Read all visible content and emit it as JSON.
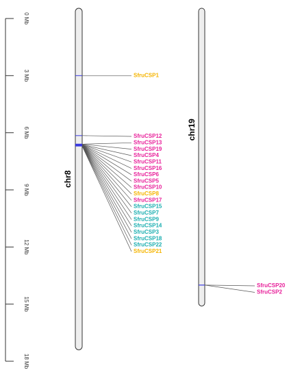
{
  "scale": {
    "ylim": [
      0,
      18
    ],
    "ticks": [
      {
        "value": 0,
        "label": "0 Mb"
      },
      {
        "value": 3,
        "label": "3 Mb"
      },
      {
        "value": 6,
        "label": "6 Mb"
      },
      {
        "value": 9,
        "label": "9 Mb"
      },
      {
        "value": 12,
        "label": "12 Mb"
      },
      {
        "value": 15,
        "label": "15 Mb"
      },
      {
        "value": 18,
        "label": "18 Mb"
      }
    ]
  },
  "chromosomes": [
    {
      "name": "chr8",
      "length": 17.4,
      "genes": [
        {
          "name": "SfruCSP1",
          "position": 3.0,
          "color": "#f5b400"
        },
        {
          "name": "SfruCSP12",
          "position": 6.15,
          "color": "#e8209a"
        },
        {
          "name": "SfruCSP13",
          "position": 6.6,
          "color": "#e8209a"
        },
        {
          "name": "SfruCSP19",
          "position": 6.6,
          "color": "#e8209a"
        },
        {
          "name": "SfruCSP4",
          "position": 6.62,
          "color": "#e8209a"
        },
        {
          "name": "SfruCSP11",
          "position": 6.62,
          "color": "#e8209a"
        },
        {
          "name": "SfruCSP16",
          "position": 6.63,
          "color": "#e8209a"
        },
        {
          "name": "SfruCSP6",
          "position": 6.63,
          "color": "#e8209a"
        },
        {
          "name": "SfruCSP5",
          "position": 6.64,
          "color": "#e8209a"
        },
        {
          "name": "SfruCSP10",
          "position": 6.64,
          "color": "#e8209a"
        },
        {
          "name": "SfruCSP8",
          "position": 6.65,
          "color": "#f5b400"
        },
        {
          "name": "SfruCSP17",
          "position": 6.65,
          "color": "#e8209a"
        },
        {
          "name": "SfruCSP15",
          "position": 6.66,
          "color": "#1aaeb0"
        },
        {
          "name": "SfruCSP7",
          "position": 6.66,
          "color": "#1aaeb0"
        },
        {
          "name": "SfruCSP9",
          "position": 6.67,
          "color": "#1aaeb0"
        },
        {
          "name": "SfruCSP14",
          "position": 6.67,
          "color": "#1aaeb0"
        },
        {
          "name": "SfruCSP3",
          "position": 6.68,
          "color": "#1aaeb0"
        },
        {
          "name": "SfruCSP18",
          "position": 6.68,
          "color": "#1aaeb0"
        },
        {
          "name": "SfruCSP22",
          "position": 6.69,
          "color": "#1aaeb0"
        },
        {
          "name": "SfruCSP21",
          "position": 6.7,
          "color": "#f5b400"
        }
      ]
    },
    {
      "name": "chr19",
      "length": 15.1,
      "genes": [
        {
          "name": "SfruCSP20",
          "position": 14.0,
          "color": "#e8209a"
        },
        {
          "name": "SfruCSP2",
          "position": 14.0,
          "color": "#e8209a"
        }
      ]
    }
  ]
}
